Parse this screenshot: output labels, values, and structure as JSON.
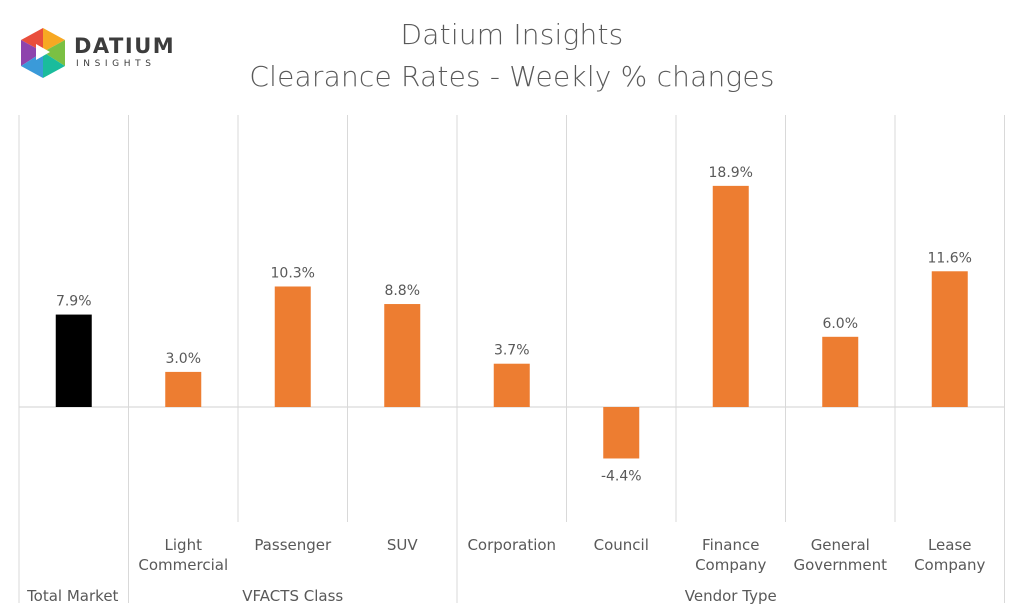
{
  "logo": {
    "name": "DATIUM",
    "tagline": "INSIGHTS",
    "icon": "cube-logo-icon",
    "colors": [
      "#e94e3c",
      "#f7a823",
      "#3a9ad9",
      "#7bc043",
      "#8e44ad",
      "#1abc9c"
    ]
  },
  "chart_data": {
    "type": "bar",
    "title": "Datium Insights",
    "subtitle": "Clearance Rates - Weekly % changes",
    "categories": [
      "Total Market",
      "Light Commercial",
      "Passenger",
      "SUV",
      "Corporation",
      "Council",
      "Finance Company",
      "General Government",
      "Lease Company"
    ],
    "category_label_lines": [
      [
        "Total Market"
      ],
      [
        "Light",
        "Commercial"
      ],
      [
        "Passenger"
      ],
      [
        "SUV"
      ],
      [
        "Corporation"
      ],
      [
        "Council"
      ],
      [
        "Finance",
        "Company"
      ],
      [
        "General",
        "Government"
      ],
      [
        "Lease",
        "Company"
      ]
    ],
    "values": [
      7.9,
      3.0,
      10.3,
      8.8,
      3.7,
      -4.4,
      18.9,
      6.0,
      11.6
    ],
    "data_labels": [
      "7.9%",
      "3.0%",
      "10.3%",
      "8.8%",
      "3.7%",
      "-4.4%",
      "18.9%",
      "6.0%",
      "11.6%"
    ],
    "groups": [
      {
        "name": "",
        "start": 0,
        "end": 0
      },
      {
        "name": "VFACTS Class",
        "start": 1,
        "end": 3
      },
      {
        "name": "Vendor Type",
        "start": 4,
        "end": 8
      }
    ],
    "ylim": [
      -5,
      20
    ],
    "colors": {
      "total": "#000000",
      "segment": "#ed7d31",
      "axis": "#d9d9d9",
      "text": "#595959"
    },
    "grid": false
  }
}
